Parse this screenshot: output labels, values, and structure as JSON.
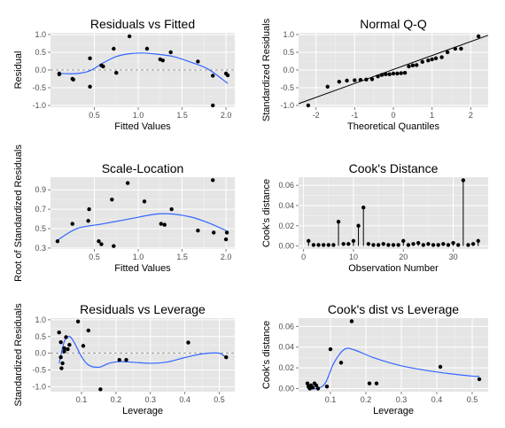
{
  "chart_data": [
    {
      "type": "scatter",
      "title": "Residuals vs Fitted",
      "xlabel": "Fitted Values",
      "ylabel": "Residual",
      "xlim": [
        0.0,
        2.1
      ],
      "ylim": [
        -1.05,
        1.05
      ],
      "xticks": [
        0.5,
        1.0,
        1.5,
        2.0
      ],
      "xtick_labels": [
        "0.5",
        "1.0",
        "1.5",
        "2.0"
      ],
      "yticks": [
        -1.0,
        -0.5,
        0.0,
        0.5,
        1.0
      ],
      "ytick_labels": [
        "-1.0",
        "-0.5",
        "0.0",
        "0.5",
        "1.0"
      ],
      "hline": 0,
      "points": [
        [
          0.1,
          -0.1
        ],
        [
          0.1,
          -0.12
        ],
        [
          0.25,
          -0.25
        ],
        [
          0.26,
          -0.27
        ],
        [
          0.45,
          0.33
        ],
        [
          0.45,
          -0.47
        ],
        [
          0.58,
          0.13
        ],
        [
          0.6,
          0.1
        ],
        [
          0.72,
          0.6
        ],
        [
          0.75,
          -0.08
        ],
        [
          0.9,
          0.95
        ],
        [
          1.1,
          0.6
        ],
        [
          1.25,
          0.3
        ],
        [
          1.28,
          0.27
        ],
        [
          1.37,
          0.5
        ],
        [
          1.68,
          0.24
        ],
        [
          1.85,
          -0.16
        ],
        [
          1.85,
          -1.0
        ],
        [
          2.0,
          -0.1
        ],
        [
          2.02,
          -0.15
        ]
      ],
      "smooth": [
        [
          0.1,
          -0.1
        ],
        [
          0.3,
          -0.1
        ],
        [
          0.45,
          -0.02
        ],
        [
          0.6,
          0.2
        ],
        [
          0.75,
          0.38
        ],
        [
          0.9,
          0.46
        ],
        [
          1.05,
          0.48
        ],
        [
          1.2,
          0.45
        ],
        [
          1.4,
          0.38
        ],
        [
          1.6,
          0.22
        ],
        [
          1.8,
          0.02
        ],
        [
          2.02,
          -0.38
        ]
      ]
    },
    {
      "type": "scatter",
      "title": "Normal Q-Q",
      "xlabel": "Theoretical Quantiles",
      "ylabel": "Standardized Residuals",
      "xlim": [
        -2.45,
        2.45
      ],
      "ylim": [
        -1.05,
        1.05
      ],
      "xticks": [
        -2,
        -1,
        0,
        1,
        2
      ],
      "xtick_labels": [
        "-2",
        "-1",
        "0",
        "1",
        "2"
      ],
      "yticks": [
        -1.0,
        -0.5,
        0.0,
        0.5,
        1.0
      ],
      "ytick_labels": [
        "-1.0",
        "-0.5",
        "0.0",
        "0.5",
        "1.0"
      ],
      "refline": [
        [
          -2.45,
          -0.95
        ],
        [
          2.45,
          0.98
        ]
      ],
      "points": [
        [
          -2.2,
          -1.0
        ],
        [
          -1.7,
          -0.47
        ],
        [
          -1.4,
          -0.33
        ],
        [
          -1.2,
          -0.3
        ],
        [
          -1.0,
          -0.29
        ],
        [
          -0.85,
          -0.28
        ],
        [
          -0.7,
          -0.27
        ],
        [
          -0.55,
          -0.26
        ],
        [
          -0.4,
          -0.18
        ],
        [
          -0.3,
          -0.14
        ],
        [
          -0.2,
          -0.12
        ],
        [
          -0.1,
          -0.12
        ],
        [
          0.0,
          -0.1
        ],
        [
          0.1,
          -0.1
        ],
        [
          0.2,
          -0.09
        ],
        [
          0.3,
          -0.08
        ],
        [
          0.4,
          0.1
        ],
        [
          0.5,
          0.13
        ],
        [
          0.6,
          0.14
        ],
        [
          0.75,
          0.23
        ],
        [
          0.9,
          0.27
        ],
        [
          1.0,
          0.3
        ],
        [
          1.1,
          0.33
        ],
        [
          1.25,
          0.36
        ],
        [
          1.4,
          0.5
        ],
        [
          1.6,
          0.6
        ],
        [
          1.75,
          0.6
        ],
        [
          2.2,
          0.95
        ]
      ]
    },
    {
      "type": "scatter",
      "title": "Scale-Location",
      "xlabel": "Fitted Values",
      "ylabel": "Root of Standardized Residuals",
      "xlim": [
        0.0,
        2.1
      ],
      "ylim": [
        0.29,
        1.03
      ],
      "xticks": [
        0.5,
        1.0,
        1.5,
        2.0
      ],
      "xtick_labels": [
        "0.5",
        "1.0",
        "1.5",
        "2.0"
      ],
      "yticks": [
        0.3,
        0.5,
        0.7,
        0.9
      ],
      "ytick_labels": [
        "0.3",
        "0.5",
        "0.7",
        "0.9"
      ],
      "points": [
        [
          0.08,
          0.37
        ],
        [
          0.25,
          0.55
        ],
        [
          0.43,
          0.58
        ],
        [
          0.44,
          0.7
        ],
        [
          0.55,
          0.37
        ],
        [
          0.58,
          0.34
        ],
        [
          0.7,
          0.8
        ],
        [
          0.72,
          0.32
        ],
        [
          0.88,
          0.97
        ],
        [
          1.07,
          0.78
        ],
        [
          1.26,
          0.55
        ],
        [
          1.3,
          0.54
        ],
        [
          1.38,
          0.7
        ],
        [
          1.68,
          0.48
        ],
        [
          1.85,
          1.0
        ],
        [
          1.86,
          0.46
        ],
        [
          2.0,
          0.39
        ],
        [
          2.01,
          0.46
        ]
      ],
      "smooth": [
        [
          0.08,
          0.38
        ],
        [
          0.3,
          0.5
        ],
        [
          0.6,
          0.55
        ],
        [
          0.9,
          0.6
        ],
        [
          1.2,
          0.65
        ],
        [
          1.4,
          0.65
        ],
        [
          1.6,
          0.62
        ],
        [
          1.8,
          0.56
        ],
        [
          2.0,
          0.48
        ]
      ]
    },
    {
      "type": "bar",
      "title": "Cook's Distance",
      "xlabel": "Observation Number",
      "ylabel": "Cook's distance",
      "xlim": [
        -1,
        37
      ],
      "ylim": [
        -0.003,
        0.068
      ],
      "xticks": [
        0,
        10,
        20,
        30
      ],
      "xtick_labels": [
        "0",
        "10",
        "20",
        "30"
      ],
      "yticks": [
        0.0,
        0.02,
        0.04,
        0.06
      ],
      "ytick_labels": [
        "0.00",
        "0.02",
        "0.04",
        "0.06"
      ],
      "x": [
        1,
        2,
        3,
        4,
        5,
        6,
        7,
        8,
        9,
        10,
        11,
        12,
        13,
        14,
        15,
        16,
        17,
        18,
        19,
        20,
        21,
        22,
        23,
        24,
        25,
        26,
        27,
        28,
        29,
        30,
        31,
        32,
        33,
        34,
        35
      ],
      "values": [
        0.005,
        0.001,
        0.001,
        0.001,
        0.001,
        0.001,
        0.024,
        0.002,
        0.002,
        0.005,
        0.02,
        0.038,
        0.002,
        0.001,
        0.001,
        0.002,
        0.001,
        0.001,
        0.001,
        0.005,
        0.001,
        0.002,
        0.003,
        0.001,
        0.002,
        0.001,
        0.001,
        0.002,
        0.001,
        0.003,
        0.001,
        0.065,
        0.001,
        0.002,
        0.005
      ]
    },
    {
      "type": "scatter",
      "title": "Residuals vs Leverage",
      "xlabel": "Leverage",
      "ylabel": "Standardized Residuals",
      "xlim": [
        0.01,
        0.545
      ],
      "ylim": [
        -1.15,
        1.05
      ],
      "xticks": [
        0.1,
        0.2,
        0.3,
        0.4,
        0.5
      ],
      "xtick_labels": [
        "0.1",
        "0.2",
        "0.3",
        "0.4",
        "0.5"
      ],
      "yticks": [
        -1.0,
        -0.5,
        0.0,
        0.5,
        1.0
      ],
      "ytick_labels": [
        "-1.0",
        "-0.5",
        "0.0",
        "0.5",
        "1.0"
      ],
      "hline": 0,
      "points": [
        [
          0.035,
          0.62
        ],
        [
          0.04,
          0.33
        ],
        [
          0.04,
          -0.12
        ],
        [
          0.042,
          -0.45
        ],
        [
          0.045,
          -0.3
        ],
        [
          0.05,
          0.15
        ],
        [
          0.05,
          0.05
        ],
        [
          0.055,
          0.48
        ],
        [
          0.06,
          0.12
        ],
        [
          0.065,
          0.25
        ],
        [
          0.09,
          0.95
        ],
        [
          0.105,
          0.22
        ],
        [
          0.12,
          0.68
        ],
        [
          0.155,
          -1.08
        ],
        [
          0.21,
          -0.2
        ],
        [
          0.23,
          -0.2
        ],
        [
          0.41,
          0.32
        ],
        [
          0.52,
          -0.12
        ]
      ],
      "smooth": [
        [
          0.035,
          -0.3
        ],
        [
          0.05,
          0.35
        ],
        [
          0.065,
          0.5
        ],
        [
          0.08,
          0.3
        ],
        [
          0.1,
          -0.1
        ],
        [
          0.12,
          -0.35
        ],
        [
          0.15,
          -0.42
        ],
        [
          0.18,
          -0.3
        ],
        [
          0.21,
          -0.25
        ],
        [
          0.25,
          -0.27
        ],
        [
          0.3,
          -0.3
        ],
        [
          0.35,
          -0.26
        ],
        [
          0.4,
          -0.13
        ],
        [
          0.45,
          -0.02
        ],
        [
          0.5,
          0.0
        ],
        [
          0.52,
          -0.15
        ]
      ]
    },
    {
      "type": "scatter",
      "title": "Cook's dist vs Leverage",
      "xlabel": "Leverage",
      "ylabel": "Cook's distance",
      "xlim": [
        0.01,
        0.545
      ],
      "ylim": [
        -0.003,
        0.068
      ],
      "xticks": [
        0.1,
        0.2,
        0.3,
        0.4,
        0.5
      ],
      "xtick_labels": [
        "0.1",
        "0.2",
        "0.3",
        "0.4",
        "0.5"
      ],
      "yticks": [
        0.0,
        0.02,
        0.04,
        0.06
      ],
      "ytick_labels": [
        "0.00",
        "0.02",
        "0.04",
        "0.06"
      ],
      "points": [
        [
          0.035,
          0.005
        ],
        [
          0.038,
          0.002
        ],
        [
          0.04,
          0.001
        ],
        [
          0.042,
          0.0
        ],
        [
          0.045,
          0.003
        ],
        [
          0.05,
          0.001
        ],
        [
          0.055,
          0.005
        ],
        [
          0.06,
          0.003
        ],
        [
          0.065,
          0.0
        ],
        [
          0.09,
          0.002
        ],
        [
          0.1,
          0.038
        ],
        [
          0.13,
          0.025
        ],
        [
          0.16,
          0.065
        ],
        [
          0.21,
          0.005
        ],
        [
          0.23,
          0.005
        ],
        [
          0.41,
          0.021
        ],
        [
          0.52,
          0.009
        ]
      ],
      "smooth": [
        [
          0.035,
          0.0
        ],
        [
          0.06,
          0.0
        ],
        [
          0.085,
          0.005
        ],
        [
          0.11,
          0.025
        ],
        [
          0.14,
          0.038
        ],
        [
          0.17,
          0.037
        ],
        [
          0.22,
          0.03
        ],
        [
          0.3,
          0.022
        ],
        [
          0.4,
          0.016
        ],
        [
          0.5,
          0.012
        ],
        [
          0.52,
          0.012
        ]
      ]
    }
  ]
}
